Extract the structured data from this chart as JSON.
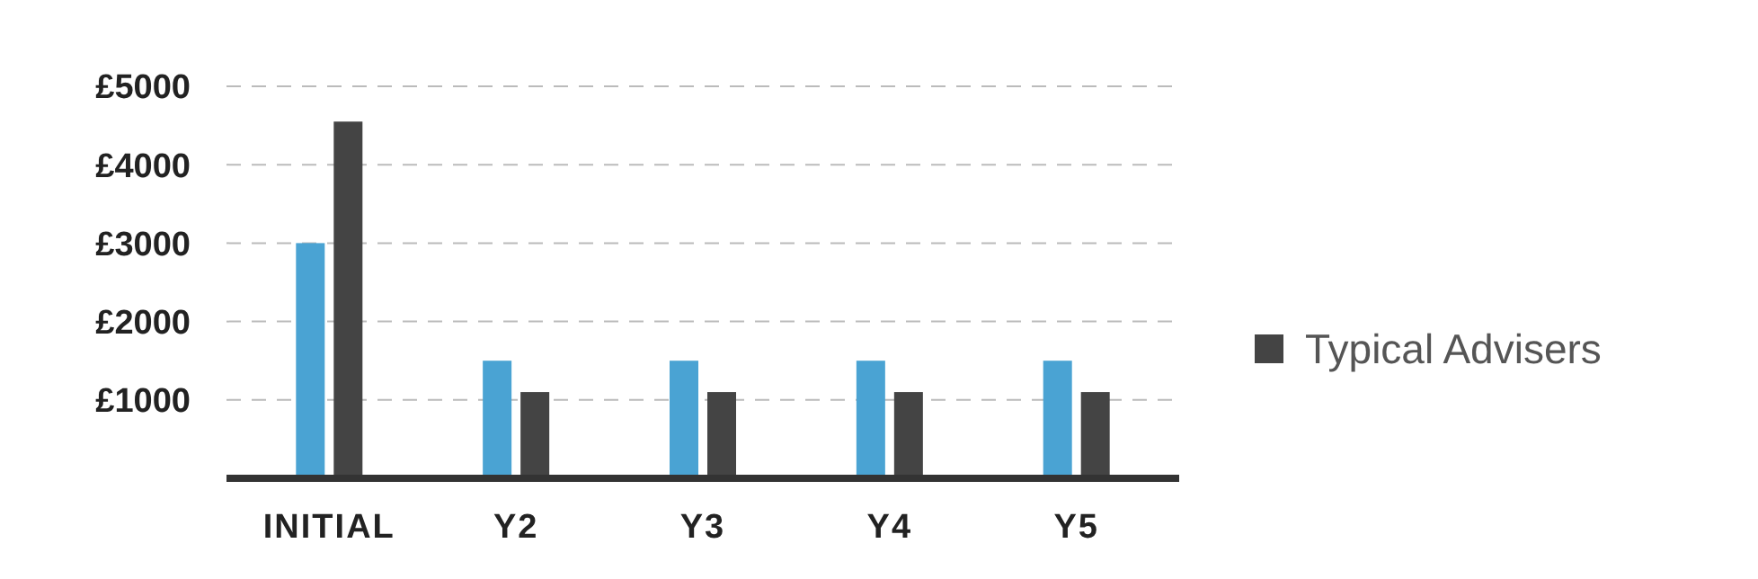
{
  "chart_data": {
    "type": "bar",
    "categories": [
      "INITIAL",
      "Y2",
      "Y3",
      "Y4",
      "Y5"
    ],
    "series": [
      {
        "color": "#4aa3d3",
        "values": [
          3000,
          1500,
          1500,
          1500,
          1500
        ]
      },
      {
        "name": "Typical Advisers",
        "color": "#444444",
        "values": [
          4550,
          1100,
          1100,
          1100,
          1100
        ]
      }
    ],
    "ylim": [
      0,
      5000
    ],
    "yticks": [
      {
        "value": 1000,
        "label": "£1000"
      },
      {
        "value": 2000,
        "label": "£2000"
      },
      {
        "value": 3000,
        "label": "£3000"
      },
      {
        "value": 4000,
        "label": "£4000"
      },
      {
        "value": 5000,
        "label": "£5000"
      }
    ],
    "grid": "y",
    "legend": "right"
  }
}
